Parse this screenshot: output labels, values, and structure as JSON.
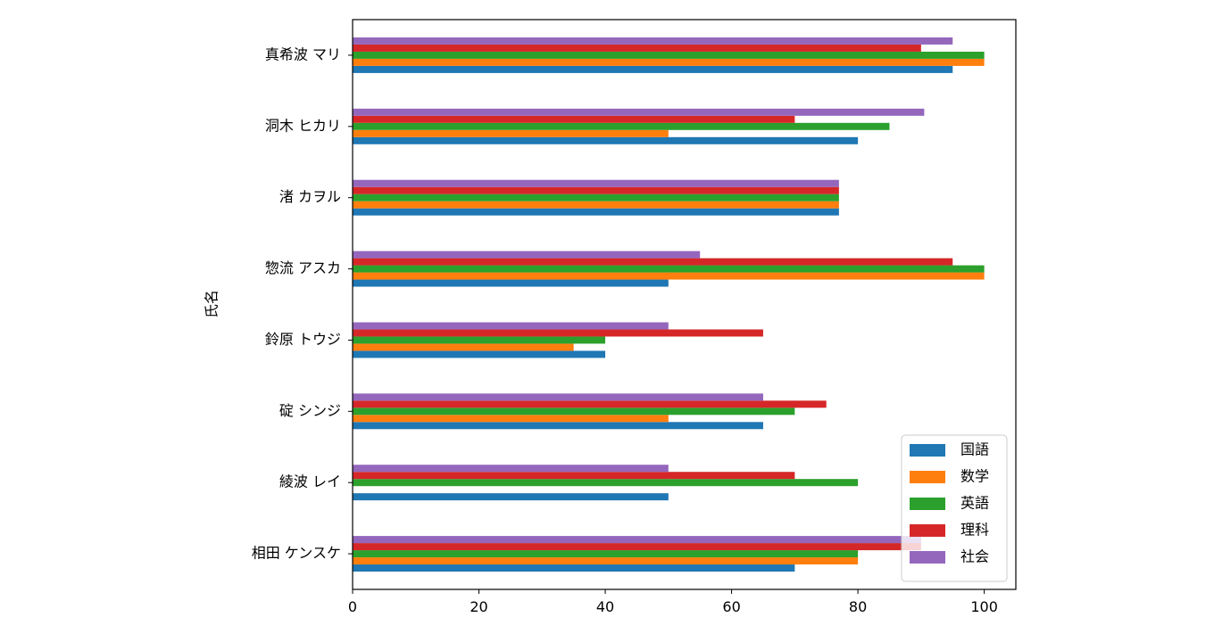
{
  "chart_data": {
    "type": "bar",
    "orientation": "horizontal",
    "title": "",
    "xlabel": "",
    "ylabel": "氏名",
    "xlim": [
      0,
      105
    ],
    "xticks": [
      0,
      20,
      40,
      60,
      80,
      100
    ],
    "grid": false,
    "legend_position": "lower-right",
    "categories": [
      "相田 ケンスケ",
      "綾波 レイ",
      "碇 シンジ",
      "鈴原 トウジ",
      "惣流 アスカ",
      "渚 カヲル",
      "洞木 ヒカリ",
      "真希波 マリ"
    ],
    "series": [
      {
        "name": "国語",
        "color": "#1f77b4",
        "values": [
          70,
          50,
          65,
          40,
          50,
          77,
          80,
          95
        ]
      },
      {
        "name": "数学",
        "color": "#ff7f0e",
        "values": [
          80,
          0,
          50,
          35,
          100,
          77,
          50,
          100
        ]
      },
      {
        "name": "英語",
        "color": "#2ca02c",
        "values": [
          80,
          80,
          70,
          40,
          100,
          77,
          85,
          100
        ]
      },
      {
        "name": "理科",
        "color": "#d62728",
        "values": [
          90,
          70,
          75,
          65,
          95,
          77,
          70,
          90
        ]
      },
      {
        "name": "社会",
        "color": "#9467bd",
        "values": [
          90,
          50,
          65,
          50,
          55,
          77,
          90.5,
          95
        ]
      }
    ]
  }
}
